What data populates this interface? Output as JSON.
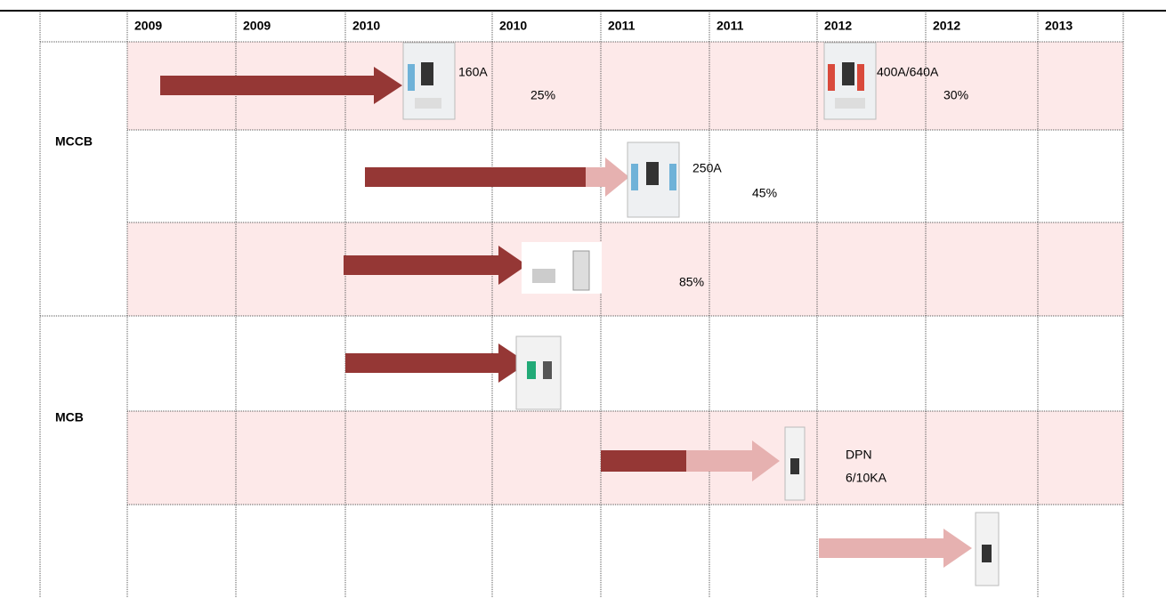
{
  "header": {
    "columns": [
      "2009",
      "2009",
      "2010",
      "2010",
      "2011",
      "2011",
      "2012",
      "2012",
      "2013"
    ]
  },
  "groups": [
    {
      "label": "MCCB"
    },
    {
      "label": "MCB"
    }
  ],
  "rows": [
    {
      "notes": [
        "160A",
        "25%",
        "400A/640A",
        "30%"
      ]
    },
    {
      "notes": [
        "250A",
        "45%"
      ]
    },
    {
      "notes": [
        "85%"
      ]
    },
    {
      "notes": []
    },
    {
      "notes": [
        "DPN",
        "6/10KA"
      ]
    },
    {
      "notes": []
    }
  ]
}
